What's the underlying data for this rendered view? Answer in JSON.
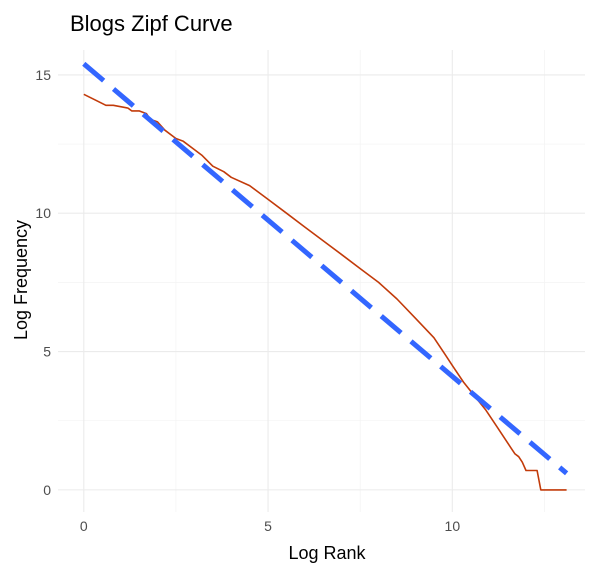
{
  "chart_data": {
    "type": "line",
    "title": "Blogs Zipf Curve",
    "xlabel": "Log Rank",
    "ylabel": "Log Frequency",
    "xlim": [
      -0.7,
      13.6
    ],
    "ylim": [
      -0.8,
      15.9
    ],
    "x_ticks": [
      0,
      5,
      10
    ],
    "y_ticks": [
      0,
      5,
      10,
      15
    ],
    "grid": true,
    "series": [
      {
        "style": "solid",
        "color": "#c23b0a",
        "x": [
          0,
          0.3,
          0.6,
          0.8,
          1.2,
          1.3,
          1.5,
          1.7,
          1.8,
          2.0,
          2.2,
          2.5,
          2.7,
          3.0,
          3.2,
          3.5,
          3.8,
          4.0,
          4.5,
          4.8,
          5.0,
          5.5,
          6.0,
          6.5,
          7.0,
          7.5,
          8.0,
          8.5,
          9.0,
          9.5,
          9.8,
          10.0,
          10.3,
          10.6,
          10.9,
          11.2,
          11.5,
          11.6,
          11.7,
          11.8,
          11.9,
          12.0,
          12.3,
          12.4,
          13.1
        ],
        "y": [
          14.3,
          14.1,
          13.9,
          13.9,
          13.8,
          13.7,
          13.7,
          13.6,
          13.4,
          13.3,
          13.0,
          12.7,
          12.6,
          12.3,
          12.1,
          11.7,
          11.5,
          11.3,
          11.0,
          10.7,
          10.5,
          10.0,
          9.5,
          9.0,
          8.5,
          8.0,
          7.5,
          6.9,
          6.2,
          5.5,
          4.9,
          4.5,
          3.9,
          3.4,
          2.9,
          2.3,
          1.7,
          1.5,
          1.3,
          1.2,
          1.0,
          0.7,
          0.7,
          0.0,
          0.0
        ]
      },
      {
        "style": "dashed",
        "color": "#3366ff",
        "x": [
          0,
          13.1
        ],
        "y": [
          15.4,
          0.6
        ]
      }
    ]
  }
}
